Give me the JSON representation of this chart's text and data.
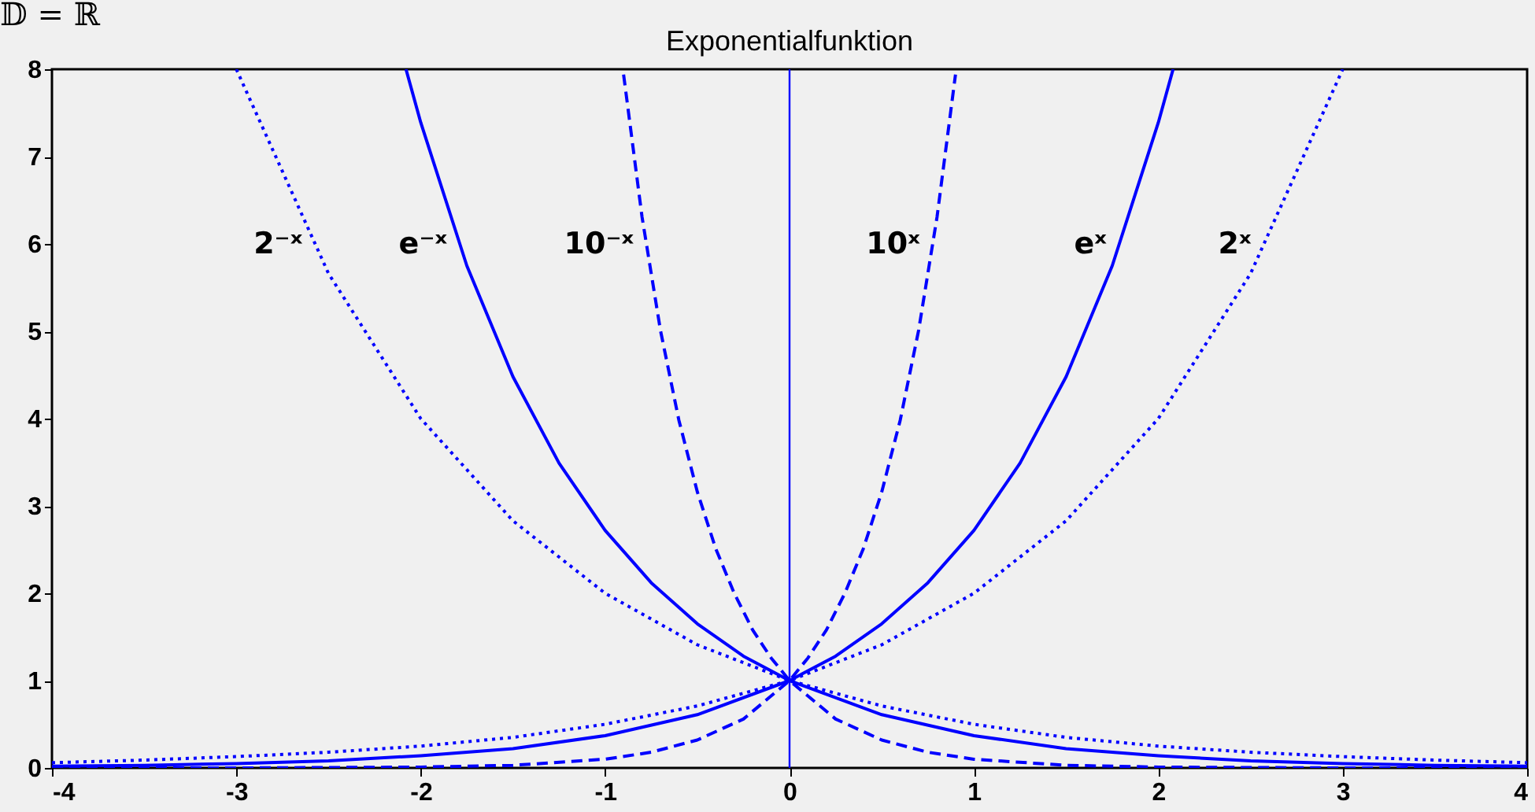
{
  "chart_data": {
    "type": "line",
    "title": "Exponentialfunktion",
    "xlim": [
      -4,
      4
    ],
    "ylim": [
      0,
      8
    ],
    "xticks": [
      -4,
      -3,
      -2,
      -1,
      0,
      1,
      2,
      3,
      4
    ],
    "yticks": [
      0,
      1,
      2,
      3,
      4,
      5,
      6,
      7,
      8
    ],
    "series": [
      {
        "name": "2⁻ˣ",
        "color": "#0000ff",
        "line_style": "dotted",
        "x": [
          -3,
          -2.5,
          -2,
          -1.5,
          -1,
          -0.5,
          0,
          0.5,
          1,
          1.5,
          2,
          2.5,
          3,
          3.5,
          4
        ],
        "values": [
          8,
          5.66,
          4,
          2.83,
          2,
          1.41,
          1,
          0.71,
          0.5,
          0.35,
          0.25,
          0.18,
          0.13,
          0.09,
          0.06
        ]
      },
      {
        "name": "e⁻ˣ",
        "color": "#0000ff",
        "line_style": "solid",
        "x": [
          -2.08,
          -2,
          -1.75,
          -1.5,
          -1.25,
          -1,
          -0.75,
          -0.5,
          -0.25,
          0,
          0.5,
          1,
          1.5,
          2,
          2.5,
          3,
          3.5,
          4
        ],
        "values": [
          8,
          7.39,
          5.75,
          4.48,
          3.49,
          2.72,
          2.12,
          1.65,
          1.28,
          1,
          0.61,
          0.37,
          0.22,
          0.14,
          0.08,
          0.05,
          0.03,
          0.02
        ]
      },
      {
        "name": "10⁻ˣ",
        "color": "#0000ff",
        "line_style": "dashed",
        "x": [
          -0.9,
          -0.8,
          -0.7,
          -0.6,
          -0.5,
          -0.4,
          -0.3,
          -0.2,
          -0.1,
          0,
          0.25,
          0.5,
          0.75,
          1,
          1.5,
          2,
          3,
          4
        ],
        "values": [
          7.94,
          6.31,
          5.01,
          3.98,
          3.16,
          2.51,
          2,
          1.58,
          1.26,
          1,
          0.56,
          0.32,
          0.18,
          0.1,
          0.03,
          0.01,
          0,
          0
        ]
      },
      {
        "name": "10ˣ",
        "color": "#0000ff",
        "line_style": "dashed",
        "x": [
          -4,
          -3,
          -2,
          -1.5,
          -1,
          -0.75,
          -0.5,
          -0.25,
          0,
          0.1,
          0.2,
          0.3,
          0.4,
          0.5,
          0.6,
          0.7,
          0.8,
          0.9
        ],
        "values": [
          0,
          0,
          0.01,
          0.03,
          0.1,
          0.18,
          0.32,
          0.56,
          1,
          1.26,
          1.58,
          2,
          2.51,
          3.16,
          3.98,
          5.01,
          6.31,
          7.94
        ]
      },
      {
        "name": "eˣ",
        "color": "#0000ff",
        "line_style": "solid",
        "x": [
          -4,
          -3.5,
          -3,
          -2.5,
          -2,
          -1.5,
          -1,
          -0.5,
          0,
          0.25,
          0.5,
          0.75,
          1,
          1.25,
          1.5,
          1.75,
          2,
          2.08
        ],
        "values": [
          0.02,
          0.03,
          0.05,
          0.08,
          0.14,
          0.22,
          0.37,
          0.61,
          1,
          1.28,
          1.65,
          2.12,
          2.72,
          3.49,
          4.48,
          5.75,
          7.39,
          8
        ]
      },
      {
        "name": "2ˣ",
        "color": "#0000ff",
        "line_style": "dotted",
        "x": [
          -4,
          -3.5,
          -3,
          -2.5,
          -2,
          -1.5,
          -1,
          -0.5,
          0,
          0.5,
          1,
          1.5,
          2,
          2.5,
          3
        ],
        "values": [
          0.06,
          0.09,
          0.13,
          0.18,
          0.25,
          0.35,
          0.5,
          0.71,
          1,
          1.41,
          2,
          2.83,
          4,
          5.66,
          8
        ]
      }
    ],
    "ref_lines": [
      {
        "axis": "x",
        "value": 0,
        "color": "#0000ff"
      }
    ],
    "annotations": [
      "𝔻 = ℝ"
    ]
  }
}
